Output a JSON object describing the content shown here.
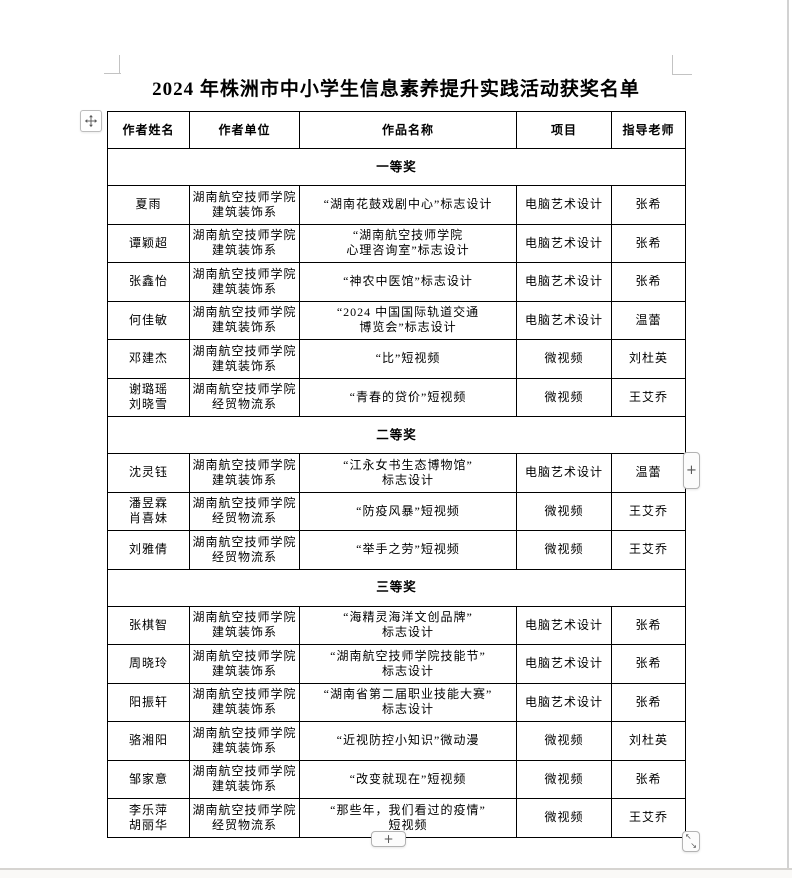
{
  "page": {
    "title": "2024 年株洲市中小学生信息素养提升实践活动获奖名单"
  },
  "table": {
    "headers": [
      "作者姓名",
      "作者单位",
      "作品名称",
      "项目",
      "指导老师"
    ],
    "sections": [
      {
        "label": "一等奖",
        "rows": [
          {
            "name": [
              "夏雨"
            ],
            "unit": [
              "湖南航空技师学院",
              "建筑装饰系"
            ],
            "work": [
              "“湖南花鼓戏剧中心”标志设计"
            ],
            "project": "电脑艺术设计",
            "teacher": "张希"
          },
          {
            "name": [
              "谭颖超"
            ],
            "unit": [
              "湖南航空技师学院",
              "建筑装饰系"
            ],
            "work": [
              "“湖南航空技师学院",
              "心理咨询室”标志设计"
            ],
            "project": "电脑艺术设计",
            "teacher": "张希"
          },
          {
            "name": [
              "张鑫怡"
            ],
            "unit": [
              "湖南航空技师学院",
              "建筑装饰系"
            ],
            "work": [
              "“神农中医馆”标志设计"
            ],
            "project": "电脑艺术设计",
            "teacher": "张希"
          },
          {
            "name": [
              "何佳敏"
            ],
            "unit": [
              "湖南航空技师学院",
              "建筑装饰系"
            ],
            "work": [
              "“2024 中国国际轨道交通",
              "博览会”标志设计"
            ],
            "project": "电脑艺术设计",
            "teacher": "温蕾"
          },
          {
            "name": [
              "邓建杰"
            ],
            "unit": [
              "湖南航空技师学院",
              "建筑装饰系"
            ],
            "work": [
              "“比”短视频"
            ],
            "project": "微视频",
            "teacher": "刘杜英"
          },
          {
            "name": [
              "谢璐瑶",
              "刘晓雪"
            ],
            "unit": [
              "湖南航空技师学院",
              "经贸物流系"
            ],
            "work": [
              "“青春的贷价”短视频"
            ],
            "project": "微视频",
            "teacher": "王艾乔"
          }
        ]
      },
      {
        "label": "二等奖",
        "rows": [
          {
            "name": [
              "沈灵钰"
            ],
            "unit": [
              "湖南航空技师学院",
              "建筑装饰系"
            ],
            "work": [
              "“江永女书生态博物馆”",
              "标志设计"
            ],
            "project": "电脑艺术设计",
            "teacher": "温蕾"
          },
          {
            "name": [
              "潘昱霖",
              "肖喜妹"
            ],
            "unit": [
              "湖南航空技师学院",
              "经贸物流系"
            ],
            "work": [
              "“防疫风暴”短视频"
            ],
            "project": "微视频",
            "teacher": "王艾乔"
          },
          {
            "name": [
              "刘雅倩"
            ],
            "unit": [
              "湖南航空技师学院",
              "经贸物流系"
            ],
            "work": [
              "“举手之劳”短视频"
            ],
            "project": "微视频",
            "teacher": "王艾乔"
          }
        ]
      },
      {
        "label": "三等奖",
        "rows": [
          {
            "name": [
              "张棋智"
            ],
            "unit": [
              "湖南航空技师学院",
              "建筑装饰系"
            ],
            "work": [
              "“海精灵海洋文创品牌”",
              "标志设计"
            ],
            "project": "电脑艺术设计",
            "teacher": "张希"
          },
          {
            "name": [
              "周晓玲"
            ],
            "unit": [
              "湖南航空技师学院",
              "建筑装饰系"
            ],
            "work": [
              "“湖南航空技师学院技能节”",
              "标志设计"
            ],
            "project": "电脑艺术设计",
            "teacher": "张希"
          },
          {
            "name": [
              "阳振轩"
            ],
            "unit": [
              "湖南航空技师学院",
              "建筑装饰系"
            ],
            "work": [
              "“湖南省第二届职业技能大赛”",
              "标志设计"
            ],
            "project": "电脑艺术设计",
            "teacher": "张希"
          },
          {
            "name": [
              "骆湘阳"
            ],
            "unit": [
              "湖南航空技师学院",
              "建筑装饰系"
            ],
            "work": [
              "“近视防控小知识”微动漫"
            ],
            "project": "微视频",
            "teacher": "刘杜英"
          },
          {
            "name": [
              "邹家意"
            ],
            "unit": [
              "湖南航空技师学院",
              "建筑装饰系"
            ],
            "work": [
              "“改变就现在”短视频"
            ],
            "project": "微视频",
            "teacher": "张希"
          },
          {
            "name": [
              "李乐萍",
              "胡丽华"
            ],
            "unit": [
              "湖南航空技师学院",
              "经贸物流系"
            ],
            "work": [
              "“那些年，我们看过的疫情”",
              "短视频"
            ],
            "project": "微视频",
            "teacher": "王艾乔"
          }
        ]
      }
    ]
  },
  "controls": {
    "add_column_glyph": "+",
    "add_row_glyph": "+",
    "resize_up_left_glyph": "↖",
    "resize_down_right_glyph": "↘"
  }
}
